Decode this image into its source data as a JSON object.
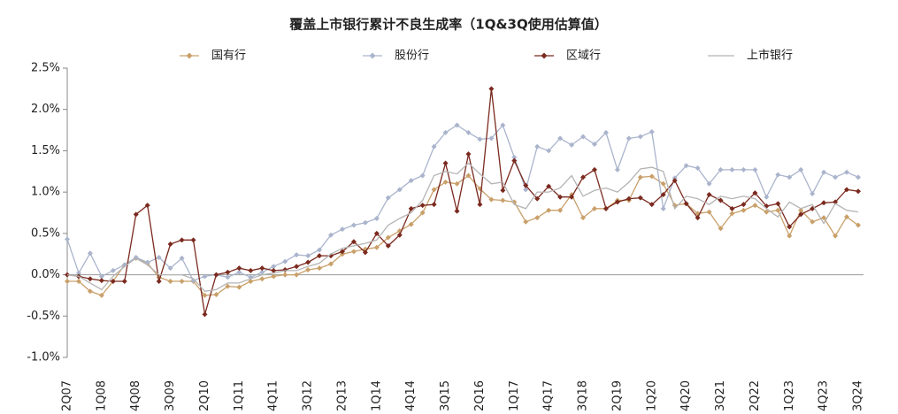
{
  "chart_data": {
    "type": "line",
    "title": "覆盖上市银行累计不良生成率（1Q&3Q使用估算值）",
    "categories": [
      "2Q07",
      null,
      null,
      "1Q08",
      null,
      null,
      "4Q08",
      null,
      null,
      "3Q09",
      null,
      null,
      "2Q10",
      null,
      null,
      "1Q11",
      null,
      null,
      "4Q11",
      null,
      null,
      "3Q12",
      null,
      null,
      "2Q13",
      null,
      null,
      "1Q14",
      null,
      null,
      "4Q14",
      null,
      null,
      "3Q15",
      null,
      null,
      "2Q16",
      null,
      null,
      "1Q17",
      null,
      null,
      "4Q17",
      null,
      null,
      "3Q18",
      null,
      null,
      "2Q19",
      null,
      null,
      "1Q20",
      null,
      null,
      "4Q20",
      null,
      null,
      "3Q21",
      null,
      null,
      "2Q22",
      null,
      null,
      "1Q23",
      null,
      null,
      "4Q23",
      null,
      null,
      "3Q24"
    ],
    "series": [
      {
        "name": "国有行",
        "color": "#c9a06a",
        "marker": true,
        "values": [
          -0.08,
          -0.08,
          -0.2,
          -0.25,
          -0.08,
          0.12,
          0.2,
          0.14,
          -0.03,
          -0.08,
          -0.08,
          -0.08,
          -0.25,
          -0.24,
          -0.14,
          -0.15,
          -0.08,
          -0.05,
          -0.02,
          0.0,
          0.0,
          0.06,
          0.08,
          0.13,
          0.25,
          0.28,
          0.31,
          0.33,
          0.45,
          0.53,
          0.61,
          0.75,
          1.03,
          1.12,
          1.1,
          1.2,
          1.04,
          0.91,
          0.9,
          0.88,
          0.64,
          0.69,
          0.78,
          0.78,
          0.97,
          0.69,
          0.8,
          0.8,
          0.9,
          0.9,
          1.18,
          1.19,
          1.1,
          0.84,
          0.86,
          0.74,
          0.76,
          0.56,
          0.74,
          0.78,
          0.84,
          0.76,
          0.78,
          0.47,
          0.78,
          0.64,
          0.69,
          0.47,
          0.7,
          0.6
        ]
      },
      {
        "name": "股份行",
        "color": "#aab4cc",
        "marker": true,
        "values": [
          0.43,
          0.02,
          0.26,
          -0.02,
          0.05,
          0.12,
          0.21,
          0.15,
          0.21,
          0.08,
          0.2,
          -0.07,
          -0.02,
          0.0,
          -0.03,
          0.03,
          -0.03,
          0.03,
          0.1,
          0.16,
          0.24,
          0.23,
          0.3,
          0.48,
          0.55,
          0.6,
          0.63,
          0.68,
          0.93,
          1.03,
          1.14,
          1.2,
          1.55,
          1.72,
          1.81,
          1.72,
          1.64,
          1.65,
          1.81,
          1.42,
          1.03,
          1.55,
          1.5,
          1.65,
          1.57,
          1.67,
          1.58,
          1.72,
          1.27,
          1.65,
          1.67,
          1.73,
          0.8,
          1.17,
          1.32,
          1.29,
          1.1,
          1.27,
          1.27,
          1.27,
          1.27,
          0.94,
          1.21,
          1.18,
          1.27,
          0.98,
          1.24,
          1.18,
          1.24,
          1.18
        ]
      },
      {
        "name": "区域行",
        "color": "#7b2a1f",
        "marker": true,
        "values": [
          0.0,
          -0.02,
          -0.05,
          -0.07,
          -0.08,
          -0.08,
          0.73,
          0.84,
          -0.08,
          0.37,
          0.42,
          0.42,
          -0.48,
          0.0,
          0.03,
          0.08,
          0.05,
          0.08,
          0.05,
          0.06,
          0.1,
          0.15,
          0.23,
          0.23,
          0.28,
          0.4,
          0.27,
          0.5,
          0.35,
          0.48,
          0.8,
          0.84,
          0.85,
          1.35,
          0.77,
          1.46,
          0.85,
          2.25,
          1.02,
          1.38,
          1.08,
          0.92,
          1.07,
          0.94,
          0.94,
          1.18,
          1.27,
          0.8,
          0.88,
          0.92,
          0.93,
          0.85,
          0.97,
          1.14,
          0.86,
          0.69,
          0.97,
          0.9,
          0.8,
          0.85,
          0.99,
          0.83,
          0.86,
          0.58,
          0.73,
          0.8,
          0.87,
          0.88,
          1.03,
          1.01
        ]
      },
      {
        "name": "上市银行",
        "color": "#b4b4b4",
        "marker": false,
        "values": [
          0.0,
          -0.02,
          -0.1,
          -0.18,
          -0.02,
          0.1,
          0.2,
          0.12,
          0.0,
          0.0,
          0.0,
          -0.05,
          -0.2,
          -0.18,
          -0.1,
          -0.1,
          -0.05,
          0.0,
          0.02,
          0.05,
          0.05,
          0.1,
          0.14,
          0.25,
          0.32,
          0.35,
          0.38,
          0.42,
          0.6,
          0.68,
          0.75,
          0.9,
          1.2,
          1.25,
          1.22,
          1.35,
          1.22,
          1.1,
          1.12,
          0.85,
          0.8,
          1.0,
          1.0,
          1.05,
          1.2,
          0.95,
          1.02,
          1.05,
          1.0,
          1.12,
          1.28,
          1.3,
          1.25,
          0.8,
          0.95,
          0.92,
          0.85,
          0.95,
          0.92,
          0.95,
          0.92,
          0.8,
          0.7,
          0.88,
          0.8,
          0.85,
          0.62,
          0.86,
          0.78,
          0.76
        ]
      }
    ],
    "ylim": [
      -1.0,
      2.5
    ],
    "yticks": [
      {
        "value": -1.0,
        "label": "-1.0%"
      },
      {
        "value": -0.5,
        "label": "-0.5%"
      },
      {
        "value": 0,
        "label": "0.0%"
      },
      {
        "value": 0.5,
        "label": "0.5%"
      },
      {
        "value": 1.0,
        "label": "1.0%"
      },
      {
        "value": 1.5,
        "label": "1.5%"
      },
      {
        "value": 2.0,
        "label": "2.0%"
      },
      {
        "value": 2.5,
        "label": "2.5%"
      }
    ],
    "legend": "top"
  }
}
